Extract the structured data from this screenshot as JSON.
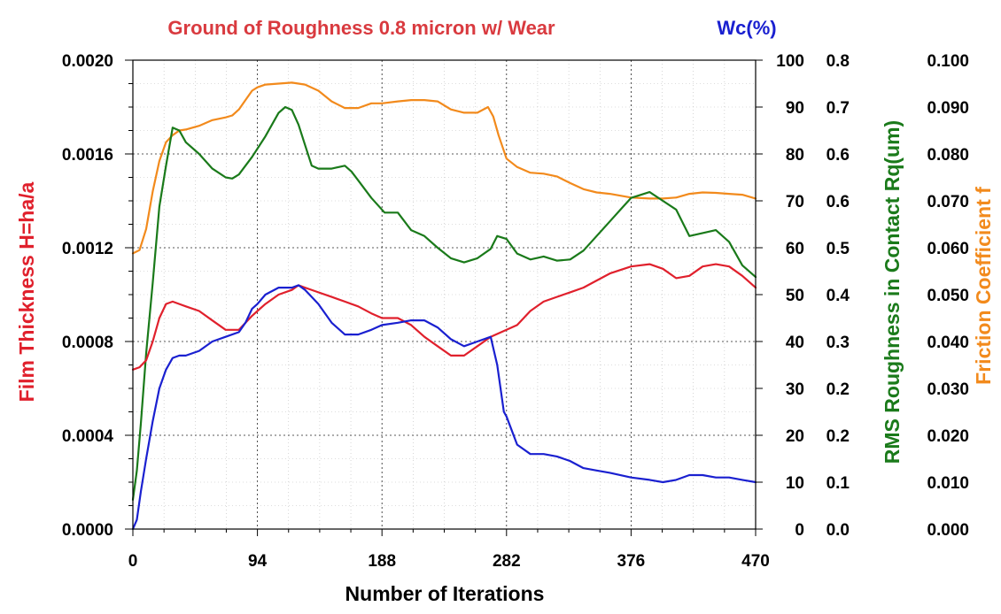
{
  "chart_data": {
    "type": "line",
    "title": "Ground of Roughness 0.8 micron w/ Wear",
    "title_color": "#d93a3f",
    "xlabel": "Number of Iterations",
    "x_ticks": [
      "0",
      "94",
      "188",
      "282",
      "376",
      "470"
    ],
    "xlim": [
      0,
      470
    ],
    "grid": true,
    "axes": {
      "film": {
        "label": "Film Thickness H=ha/a",
        "color": "#e0202c",
        "ylim": [
          0,
          0.002
        ],
        "ticks": [
          "0.0000",
          "0.0004",
          "0.0008",
          "0.0012",
          "0.0016",
          "0.0020"
        ]
      },
      "wc": {
        "label": "Wc(%)",
        "color": "#1a20d0",
        "ylim": [
          0,
          100
        ],
        "ticks": [
          "0",
          "10",
          "20",
          "30",
          "40",
          "50",
          "60",
          "70",
          "80",
          "90",
          "100"
        ]
      },
      "rq": {
        "label": "RMS Roughness in Contact Rq(um)",
        "color": "#1a7a1a",
        "ylim": [
          0,
          0.8
        ],
        "ticks": [
          "0.0",
          "0.1",
          "0.2",
          "0.2",
          "0.3",
          "0.4",
          "0.5",
          "0.6",
          "0.6",
          "0.7",
          "0.8"
        ]
      },
      "friction": {
        "label": "Friction Coefficient f",
        "color": "#f28a1c",
        "ylim": [
          0,
          0.1
        ],
        "ticks": [
          "0.000",
          "0.010",
          "0.020",
          "0.030",
          "0.040",
          "0.050",
          "0.060",
          "0.070",
          "0.080",
          "0.090",
          "0.100"
        ]
      }
    },
    "series": [
      {
        "key": "friction",
        "color": "#f28a1c",
        "x": [
          0,
          5,
          10,
          15,
          20,
          25,
          30,
          35,
          40,
          50,
          60,
          70,
          75,
          80,
          85,
          90,
          94,
          100,
          110,
          120,
          130,
          140,
          150,
          160,
          170,
          180,
          188,
          200,
          210,
          220,
          230,
          240,
          250,
          260,
          268,
          272,
          276,
          282,
          290,
          300,
          310,
          320,
          330,
          340,
          350,
          360,
          376,
          390,
          400,
          410,
          420,
          430,
          440,
          450,
          460,
          470
        ],
        "y": [
          0.0588,
          0.0595,
          0.064,
          0.072,
          0.0785,
          0.0825,
          0.084,
          0.085,
          0.0852,
          0.086,
          0.0872,
          0.0878,
          0.0882,
          0.0895,
          0.0915,
          0.0935,
          0.0942,
          0.0948,
          0.095,
          0.0952,
          0.0948,
          0.0935,
          0.0912,
          0.0898,
          0.0898,
          0.0908,
          0.0908,
          0.0912,
          0.0915,
          0.0915,
          0.0912,
          0.0895,
          0.0888,
          0.0888,
          0.09,
          0.088,
          0.084,
          0.079,
          0.0772,
          0.076,
          0.0758,
          0.0752,
          0.0738,
          0.0725,
          0.0718,
          0.0715,
          0.0707,
          0.0705,
          0.0705,
          0.0707,
          0.0715,
          0.0718,
          0.0717,
          0.0715,
          0.0713,
          0.0705
        ]
      },
      {
        "key": "rq",
        "color": "#1a7a1a",
        "x": [
          0,
          3,
          6,
          10,
          15,
          20,
          25,
          30,
          35,
          40,
          50,
          60,
          70,
          75,
          80,
          90,
          100,
          110,
          115,
          120,
          125,
          130,
          135,
          140,
          150,
          160,
          165,
          170,
          180,
          190,
          200,
          205,
          210,
          220,
          230,
          240,
          250,
          260,
          270,
          275,
          282,
          290,
          300,
          310,
          320,
          330,
          340,
          350,
          360,
          370,
          376,
          390,
          400,
          410,
          420,
          430,
          440,
          450,
          460,
          470
        ],
        "y": [
          0.05,
          0.1,
          0.18,
          0.3,
          0.42,
          0.55,
          0.62,
          0.685,
          0.68,
          0.66,
          0.64,
          0.615,
          0.6,
          0.598,
          0.605,
          0.635,
          0.67,
          0.71,
          0.72,
          0.715,
          0.69,
          0.655,
          0.62,
          0.615,
          0.615,
          0.62,
          0.61,
          0.595,
          0.565,
          0.54,
          0.54,
          0.525,
          0.51,
          0.5,
          0.48,
          0.462,
          0.455,
          0.462,
          0.478,
          0.5,
          0.495,
          0.47,
          0.46,
          0.465,
          0.458,
          0.46,
          0.475,
          0.5,
          0.525,
          0.55,
          0.565,
          0.575,
          0.56,
          0.545,
          0.5,
          0.505,
          0.51,
          0.49,
          0.45,
          0.43
        ]
      },
      {
        "key": "film",
        "color": "#e0202c",
        "x": [
          0,
          5,
          10,
          15,
          20,
          25,
          30,
          35,
          40,
          50,
          60,
          70,
          80,
          90,
          94,
          100,
          110,
          120,
          125,
          130,
          140,
          150,
          160,
          170,
          180,
          188,
          200,
          210,
          220,
          230,
          240,
          250,
          260,
          270,
          282,
          290,
          300,
          310,
          320,
          330,
          340,
          350,
          360,
          376,
          390,
          400,
          410,
          420,
          430,
          440,
          450,
          460,
          470
        ],
        "y": [
          0.00068,
          0.00069,
          0.00072,
          0.0008,
          0.0009,
          0.00096,
          0.00097,
          0.00096,
          0.00095,
          0.00093,
          0.00089,
          0.00085,
          0.00085,
          0.00091,
          0.00093,
          0.00096,
          0.001,
          0.00102,
          0.00104,
          0.00103,
          0.00101,
          0.00099,
          0.00097,
          0.00095,
          0.00092,
          0.0009,
          0.0009,
          0.00087,
          0.00082,
          0.00078,
          0.00074,
          0.00074,
          0.00078,
          0.00082,
          0.00085,
          0.00087,
          0.00093,
          0.00097,
          0.00099,
          0.00101,
          0.00103,
          0.00106,
          0.00109,
          0.00112,
          0.00113,
          0.00111,
          0.00107,
          0.00108,
          0.00112,
          0.00113,
          0.00112,
          0.00108,
          0.00103
        ]
      },
      {
        "key": "wc",
        "color": "#1a20d0",
        "x": [
          0,
          3,
          6,
          10,
          15,
          20,
          25,
          30,
          35,
          40,
          50,
          60,
          70,
          80,
          85,
          90,
          94,
          100,
          110,
          120,
          125,
          130,
          135,
          140,
          150,
          160,
          170,
          180,
          188,
          200,
          210,
          220,
          230,
          240,
          250,
          260,
          270,
          275,
          280,
          282,
          290,
          300,
          310,
          320,
          330,
          340,
          350,
          360,
          376,
          390,
          400,
          410,
          420,
          430,
          440,
          450,
          460,
          470
        ],
        "y": [
          0,
          2,
          8,
          15,
          23,
          30,
          34,
          36.5,
          37,
          37,
          38,
          40,
          41,
          42,
          44,
          47,
          48,
          50,
          51.5,
          51.5,
          52,
          51,
          49.5,
          48,
          44,
          41.5,
          41.5,
          42.5,
          43.5,
          44,
          44.5,
          44.5,
          43,
          40.5,
          39,
          40,
          41,
          35,
          25,
          24,
          18,
          16,
          16,
          15.5,
          14.5,
          13,
          12.5,
          12,
          11,
          10.5,
          10,
          10.5,
          11.5,
          11.5,
          11,
          11,
          10.5,
          10
        ]
      }
    ]
  }
}
